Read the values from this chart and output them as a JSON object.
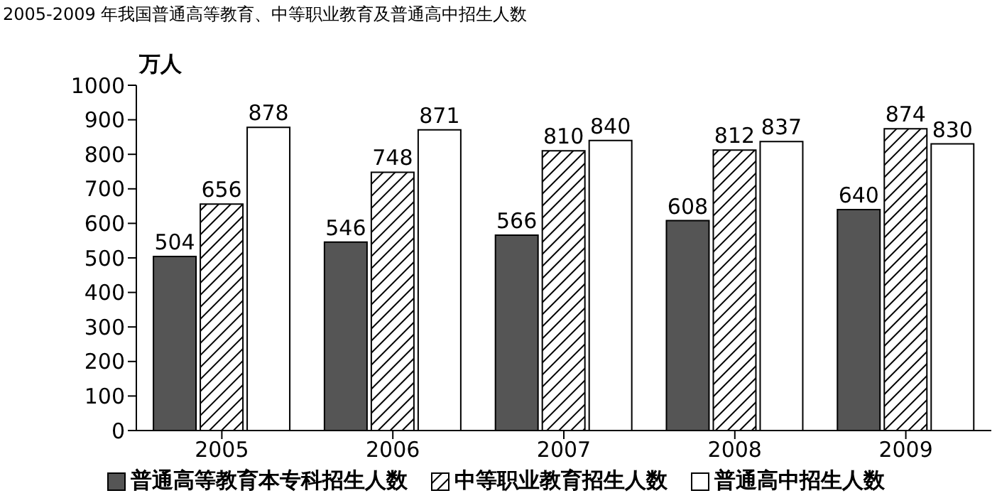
{
  "chart_data": {
    "type": "bar",
    "title": "2005-2009 年我国普通高等教育、中等职业教育及普通高中招生人数",
    "ylabel": "万人",
    "categories": [
      "2005",
      "2006",
      "2007",
      "2008",
      "2009"
    ],
    "series": [
      {
        "name": "普通高等教育本专科招生人数",
        "color": "#555555",
        "values": [
          504,
          546,
          566,
          608,
          640
        ]
      },
      {
        "name": "中等职业教育招生人数",
        "color": "#000000",
        "values": [
          656,
          748,
          810,
          812,
          874
        ]
      },
      {
        "name": "普通高中招生人数",
        "color": "#ffffff",
        "values": [
          878,
          871,
          840,
          837,
          830
        ]
      }
    ],
    "ylim": [
      0,
      1000
    ],
    "yticks": [
      0,
      100,
      200,
      300,
      400,
      500,
      600,
      700,
      800,
      900,
      1000
    ],
    "grid": false,
    "legend": "bottom",
    "data_labels": true
  }
}
